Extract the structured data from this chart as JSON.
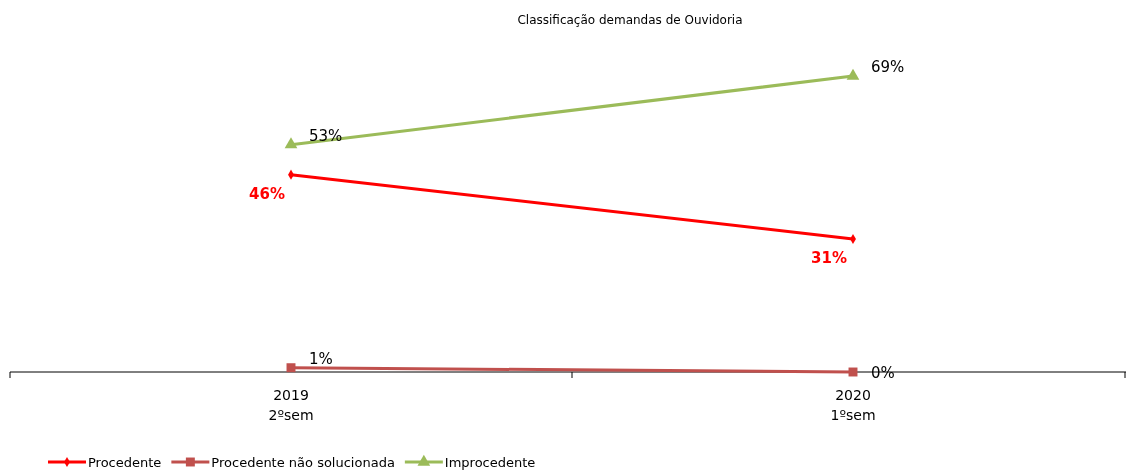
{
  "chart_data": {
    "type": "line",
    "title": "Classificação demandas de Ouvidoria",
    "categories": [
      "2019\n2ºsem",
      "2020\n1ºsem"
    ],
    "series": [
      {
        "name": "Procedente",
        "color": "#ff0000",
        "values": [
          46,
          31
        ],
        "marker": "diamond",
        "value_labels": [
          "46%",
          "31%"
        ]
      },
      {
        "name": "Procedente não solucionada",
        "color": "#c0504d",
        "values": [
          1,
          0
        ],
        "marker": "square",
        "value_labels": [
          "1%",
          "0%"
        ]
      },
      {
        "name": "Improcedente",
        "color": "#9bbb59",
        "values": [
          53,
          69
        ],
        "marker": "triangle",
        "value_labels": [
          "53%",
          "69%"
        ]
      }
    ],
    "legend": "bottom left"
  }
}
